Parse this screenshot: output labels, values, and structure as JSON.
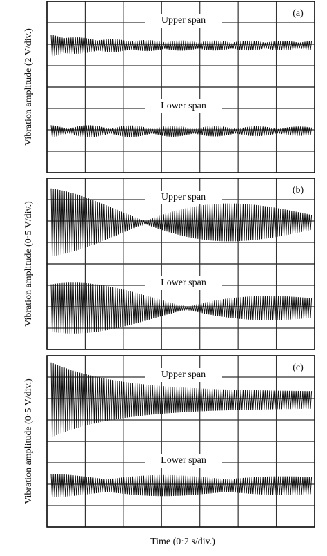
{
  "panels": [
    {
      "label": "(a)",
      "y_label": "Vibration amplitude (2 V/div.)",
      "traces": [
        {
          "title": "Upper span"
        },
        {
          "title": "Lower span"
        }
      ]
    },
    {
      "label": "(b)",
      "y_label": "Vibration amplitude (0·5 V/div.)",
      "traces": [
        {
          "title": "Upper span"
        },
        {
          "title": "Lower span"
        }
      ]
    },
    {
      "label": "(c)",
      "y_label": "Vibration amplitude (0·5 V/div.)",
      "traces": [
        {
          "title": "Upper span"
        },
        {
          "title": "Lower span"
        }
      ]
    }
  ],
  "x_label": "Time (0·2 s/div.)"
}
